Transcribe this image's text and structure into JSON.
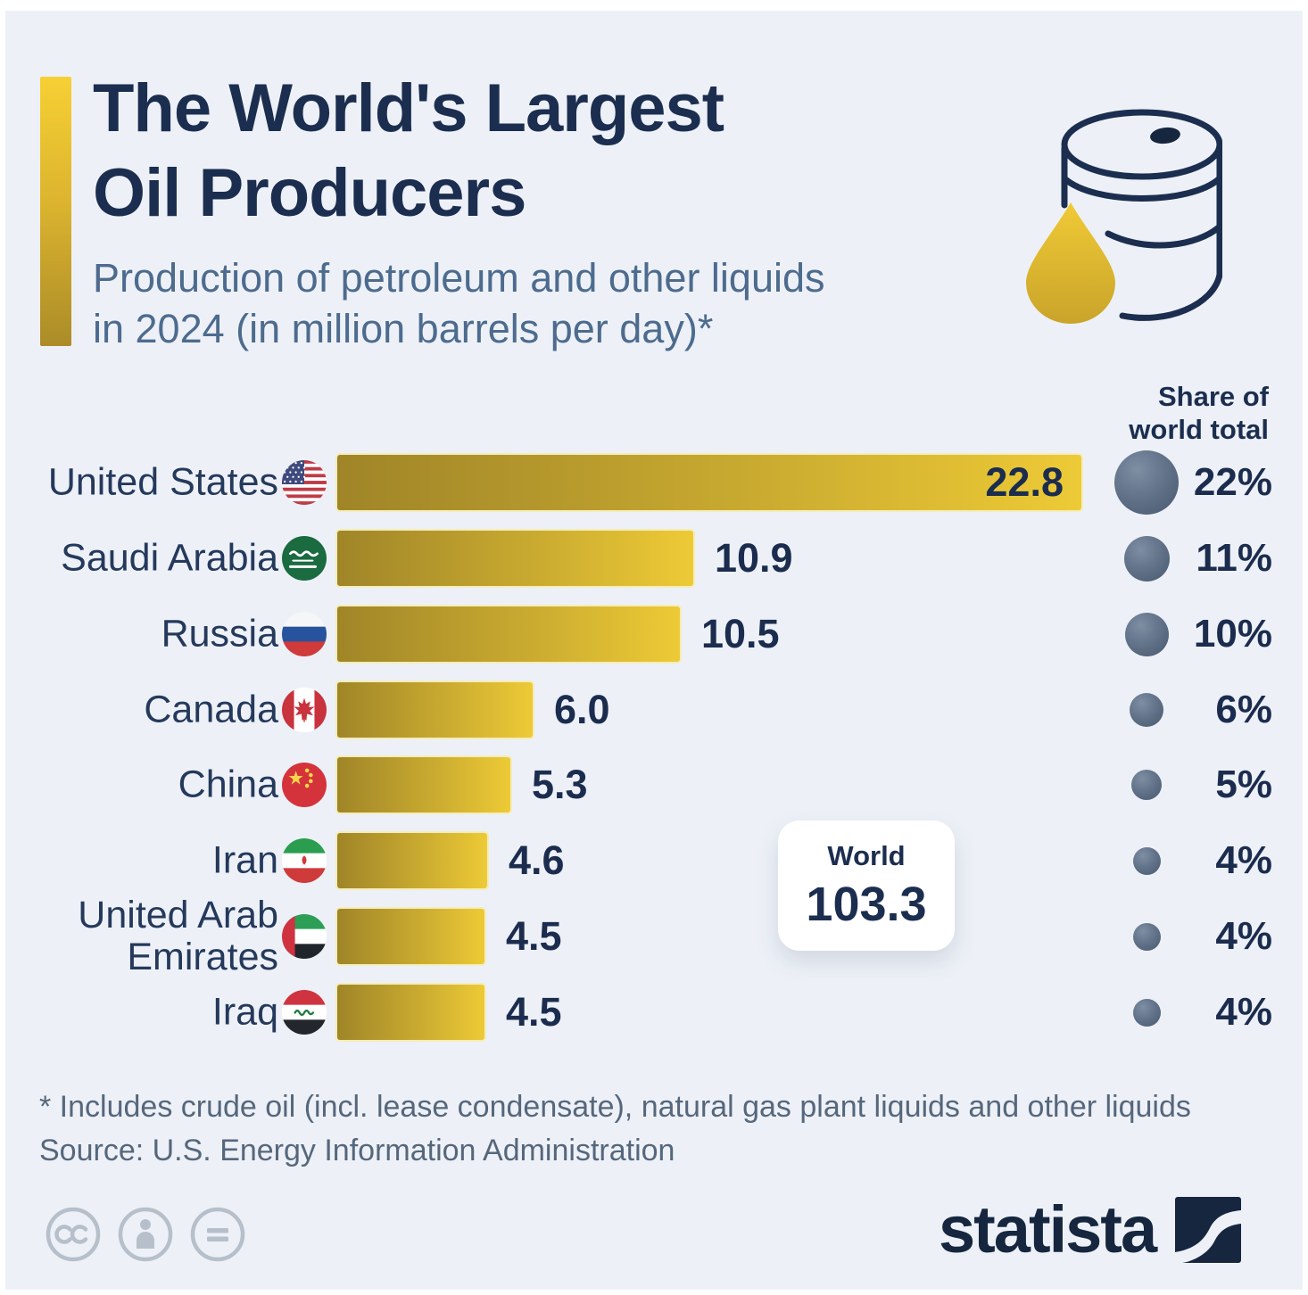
{
  "page": {
    "background": "#edf1f7",
    "navy": "#1c2e4f",
    "gold": "#e3bb2e"
  },
  "header": {
    "title_line1": "The World's Largest",
    "title_line2": "Oil Producers",
    "subtitle_line1": "Production of petroleum and other liquids",
    "subtitle_line2": "in 2024 (in million barrels per day)*"
  },
  "share_header": {
    "line1": "Share of",
    "line2": "world total"
  },
  "world_box": {
    "label": "World",
    "value": "103.3"
  },
  "chart_data": {
    "type": "bar",
    "orientation": "horizontal",
    "title": "The World's Largest Oil Producers",
    "subtitle": "Production of petroleum and other liquids in 2024 (in million barrels per day)*",
    "unit": "million barrels per day",
    "categories": [
      "United States",
      "Saudi Arabia",
      "Russia",
      "Canada",
      "China",
      "Iran",
      "United Arab Emirates",
      "Iraq"
    ],
    "values": [
      22.8,
      10.9,
      10.5,
      6.0,
      5.3,
      4.6,
      4.5,
      4.5
    ],
    "share_of_world_total_pct": [
      22,
      11,
      10,
      6,
      5,
      4,
      4,
      4
    ],
    "flags": [
      "us",
      "sa",
      "ru",
      "ca",
      "cn",
      "ir",
      "ae",
      "iq"
    ],
    "world_total": 103.3,
    "xlim": [
      0,
      24
    ],
    "grid": false,
    "bar_color_start": "#a08528",
    "bar_color_mid": "#c9aa30",
    "bar_color_end": "#edca36",
    "bubble_color": "#5d6e85"
  },
  "footer": {
    "footnote": "* Includes crude oil (incl. lease condensate), natural gas plant liquids and other liquids",
    "source": "Source: U.S. Energy Information Administration",
    "license_icons": [
      "cc",
      "attribution",
      "no-derivatives"
    ],
    "logo_text": "statista"
  }
}
